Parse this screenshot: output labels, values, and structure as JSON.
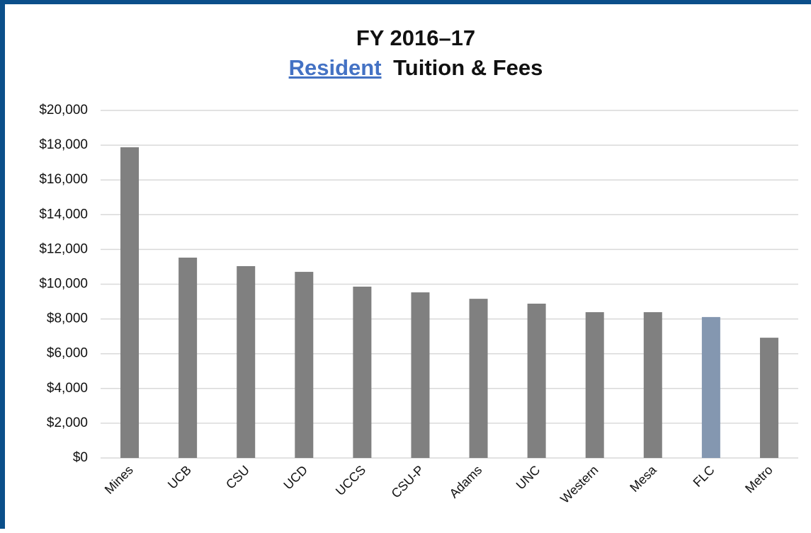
{
  "chart_data": {
    "type": "bar",
    "title": "FY 2016–17",
    "subtitle": [
      "Resident",
      "Tuition & Fees"
    ],
    "categories": [
      "Mines",
      "UCB",
      "CSU",
      "UCD",
      "UCCS",
      "CSU-P",
      "Adams",
      "UNC",
      "Western",
      "Mesa",
      "FLC",
      "Metro"
    ],
    "values": [
      17880,
      11530,
      11040,
      10710,
      9860,
      9530,
      9160,
      8880,
      8390,
      8390,
      8110,
      6920
    ],
    "colors": [
      "#808080",
      "#808080",
      "#808080",
      "#808080",
      "#808080",
      "#808080",
      "#808080",
      "#808080",
      "#808080",
      "#808080",
      "#8497b0",
      "#808080"
    ],
    "ylim": [
      0,
      20000
    ],
    "yticks": [
      {
        "value": 0,
        "label": "$0"
      },
      {
        "value": 2000,
        "label": "$2,000"
      },
      {
        "value": 4000,
        "label": "$4,000"
      },
      {
        "value": 6000,
        "label": "$6,000"
      },
      {
        "value": 8000,
        "label": "$8,000"
      },
      {
        "value": 10000,
        "label": "$10,000"
      },
      {
        "value": 12000,
        "label": "$12,000"
      },
      {
        "value": 14000,
        "label": "$14,000"
      },
      {
        "value": 16000,
        "label": "$16,000"
      },
      {
        "value": 18000,
        "label": "$18,000"
      },
      {
        "value": 20000,
        "label": "$20,000"
      }
    ],
    "grid": true
  }
}
